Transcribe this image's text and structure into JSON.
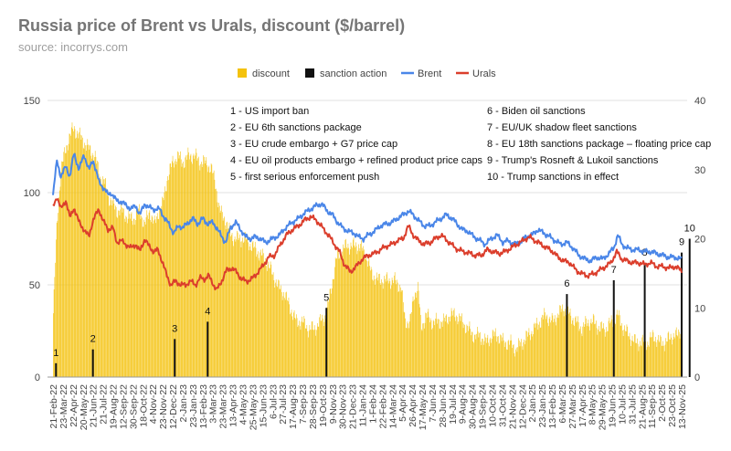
{
  "chart_data": {
    "type": "bar+line",
    "title": "Russia price of Brent vs Urals, discount ($/barrel)",
    "subtitle": "source: incorrys.com",
    "legend": [
      "discount",
      "sanction action",
      "Brent",
      "Urals"
    ],
    "legend_position": "top",
    "left_axis": {
      "ylim": [
        0,
        150
      ],
      "ticks": [
        0,
        50,
        100,
        150
      ]
    },
    "right_axis": {
      "ylim": [
        0,
        40
      ],
      "ticks": [
        0,
        10,
        20,
        30,
        40
      ]
    },
    "colors": {
      "discount": "#f4c20d",
      "sanction": "#111111",
      "brent": "#4a86e8",
      "urals": "#db3e2c",
      "grid": "#e0e0e0"
    },
    "x_tick_labels": [
      "21-Feb-22",
      "23-Mar-22",
      "22-Apr-22",
      "20-May-22",
      "21-Jun-22",
      "21-Jul-22",
      "19-Aug-22",
      "12-Sep-22",
      "30-Sep-22",
      "18-Oct-22",
      "4-Nov-22",
      "23-Nov-22",
      "12-Dec-22",
      "2-Jan-23",
      "23-Jan-23",
      "13-Feb-23",
      "3-Mar-23",
      "23-Mar-23",
      "13-Apr-23",
      "4-May-23",
      "25-May-23",
      "15-Jun-23",
      "6-Jul-23",
      "27-Jul-23",
      "17-Aug-23",
      "7-Sep-23",
      "28-Sep-23",
      "19-Oct-23",
      "9-Nov-23",
      "30-Nov-23",
      "21-Dec-23",
      "11-Jan-24",
      "1-Feb-24",
      "22-Feb-24",
      "14-Mar-24",
      "5-Apr-24",
      "26-Apr-24",
      "17-May-24",
      "7-Jun-24",
      "28-Jun-24",
      "19-Jul-24",
      "9-Aug-24",
      "30-Aug-24",
      "19-Sep-24",
      "10-Oct-24",
      "31-Oct-24",
      "21-Nov-24",
      "12-Dec-24",
      "2-Jan-25",
      "23-Jan-25",
      "13-Feb-25",
      "6-Mar-25",
      "27-Mar-25",
      "17-Apr-25",
      "8-May-25",
      "29-May-25",
      "19-Jun-25",
      "10-Jul-25",
      "31-Jul-25",
      "21-Aug-25",
      "11-Sep-25",
      "2-Oct-25",
      "23-Oct-25",
      "13-Nov-25"
    ],
    "brent_knots": [
      [
        0,
        98
      ],
      [
        0.4,
        118
      ],
      [
        0.8,
        108
      ],
      [
        1.3,
        115
      ],
      [
        1.7,
        108
      ],
      [
        2.1,
        122
      ],
      [
        2.6,
        112
      ],
      [
        3.1,
        121
      ],
      [
        3.6,
        112
      ],
      [
        4.0,
        118
      ],
      [
        4.6,
        106
      ],
      [
        5.0,
        103
      ],
      [
        5.5,
        99
      ],
      [
        5.8,
        100
      ],
      [
        6.3,
        96
      ],
      [
        6.8,
        95
      ],
      [
        7.4,
        93
      ],
      [
        7.8,
        91
      ],
      [
        8.3,
        93
      ],
      [
        8.7,
        88
      ],
      [
        9.2,
        94
      ],
      [
        9.6,
        92
      ],
      [
        10.1,
        91
      ],
      [
        10.7,
        91
      ],
      [
        11.2,
        86
      ],
      [
        11.6,
        83
      ],
      [
        12.1,
        78
      ],
      [
        12.6,
        82
      ],
      [
        13.0,
        81
      ],
      [
        13.6,
        84
      ],
      [
        14.0,
        86
      ],
      [
        14.5,
        83
      ],
      [
        15.0,
        86
      ],
      [
        15.5,
        83
      ],
      [
        16.0,
        84
      ],
      [
        16.4,
        81
      ],
      [
        16.8,
        77
      ],
      [
        17.3,
        73
      ],
      [
        17.8,
        81
      ],
      [
        18.3,
        84
      ],
      [
        18.8,
        80
      ],
      [
        19.3,
        76
      ],
      [
        19.8,
        75
      ],
      [
        20.3,
        76
      ],
      [
        20.8,
        75
      ],
      [
        21.3,
        73
      ],
      [
        22.0,
        75
      ],
      [
        22.7,
        77
      ],
      [
        23.3,
        81
      ],
      [
        24.0,
        84
      ],
      [
        24.6,
        86
      ],
      [
        25.2,
        89
      ],
      [
        25.8,
        91
      ],
      [
        26.4,
        93
      ],
      [
        26.9,
        94
      ],
      [
        27.5,
        90
      ],
      [
        28.0,
        88
      ],
      [
        28.5,
        84
      ],
      [
        29.0,
        81
      ],
      [
        29.6,
        79
      ],
      [
        30.2,
        78
      ],
      [
        30.6,
        76
      ],
      [
        31.1,
        75
      ],
      [
        31.6,
        77
      ],
      [
        32.2,
        79
      ],
      [
        32.8,
        82
      ],
      [
        33.4,
        83
      ],
      [
        34.0,
        84
      ],
      [
        34.5,
        86
      ],
      [
        35.1,
        88
      ],
      [
        35.6,
        90
      ],
      [
        36.1,
        88
      ],
      [
        36.6,
        85
      ],
      [
        37.2,
        82
      ],
      [
        37.8,
        82
      ],
      [
        38.3,
        84
      ],
      [
        38.9,
        86
      ],
      [
        39.4,
        88
      ],
      [
        40.0,
        86
      ],
      [
        40.5,
        83
      ],
      [
        41.0,
        80
      ],
      [
        41.6,
        79
      ],
      [
        42.2,
        76
      ],
      [
        42.8,
        74
      ],
      [
        43.3,
        72
      ],
      [
        43.9,
        75
      ],
      [
        44.5,
        77
      ],
      [
        45.1,
        73
      ],
      [
        45.6,
        74
      ],
      [
        46.2,
        72
      ],
      [
        46.8,
        73
      ],
      [
        47.4,
        76
      ],
      [
        48.0,
        77
      ],
      [
        48.6,
        80
      ],
      [
        49.2,
        78
      ],
      [
        49.8,
        76
      ],
      [
        50.3,
        74
      ],
      [
        50.9,
        72
      ],
      [
        51.5,
        73
      ],
      [
        52.1,
        70
      ],
      [
        52.7,
        66
      ],
      [
        53.3,
        64
      ],
      [
        53.9,
        63
      ],
      [
        54.5,
        65
      ],
      [
        55.1,
        64
      ],
      [
        55.7,
        67
      ],
      [
        56.2,
        70
      ],
      [
        56.6,
        77
      ],
      [
        57.0,
        72
      ],
      [
        57.5,
        70
      ],
      [
        58.1,
        69
      ],
      [
        58.7,
        69
      ],
      [
        59.3,
        68
      ],
      [
        59.9,
        68
      ],
      [
        60.5,
        67
      ],
      [
        61.1,
        66
      ],
      [
        61.7,
        65
      ],
      [
        62.3,
        65
      ],
      [
        62.9,
        64
      ],
      [
        63.5,
        64
      ],
      [
        64.0,
        63
      ]
    ],
    "urals_knots": [
      [
        0,
        92
      ],
      [
        0.4,
        98
      ],
      [
        0.8,
        91
      ],
      [
        1.3,
        96
      ],
      [
        1.7,
        86
      ],
      [
        2.1,
        92
      ],
      [
        2.6,
        84
      ],
      [
        3.1,
        80
      ],
      [
        3.6,
        76
      ],
      [
        4.0,
        85
      ],
      [
        4.6,
        91
      ],
      [
        5.0,
        85
      ],
      [
        5.5,
        80
      ],
      [
        6.0,
        81
      ],
      [
        6.4,
        73
      ],
      [
        6.8,
        74
      ],
      [
        7.3,
        72
      ],
      [
        7.8,
        70
      ],
      [
        8.3,
        72
      ],
      [
        8.7,
        68
      ],
      [
        9.2,
        75
      ],
      [
        9.6,
        71
      ],
      [
        10.1,
        68
      ],
      [
        10.5,
        69
      ],
      [
        11.0,
        62
      ],
      [
        11.4,
        55
      ],
      [
        11.8,
        50
      ],
      [
        12.3,
        52
      ],
      [
        12.8,
        50
      ],
      [
        13.3,
        50
      ],
      [
        13.8,
        52
      ],
      [
        14.3,
        50
      ],
      [
        14.8,
        54
      ],
      [
        15.2,
        53
      ],
      [
        15.6,
        55
      ],
      [
        16.0,
        51
      ],
      [
        16.4,
        47
      ],
      [
        16.9,
        52
      ],
      [
        17.4,
        58
      ],
      [
        17.9,
        59
      ],
      [
        18.4,
        57
      ],
      [
        18.9,
        53
      ],
      [
        19.4,
        52
      ],
      [
        19.9,
        53
      ],
      [
        20.4,
        56
      ],
      [
        21.0,
        60
      ],
      [
        21.6,
        65
      ],
      [
        22.2,
        66
      ],
      [
        22.8,
        72
      ],
      [
        23.4,
        77
      ],
      [
        24.0,
        80
      ],
      [
        24.6,
        82
      ],
      [
        25.2,
        85
      ],
      [
        25.8,
        87
      ],
      [
        26.4,
        85
      ],
      [
        27.0,
        81
      ],
      [
        27.6,
        77
      ],
      [
        28.2,
        72
      ],
      [
        28.7,
        68
      ],
      [
        29.2,
        61
      ],
      [
        29.8,
        57
      ],
      [
        30.4,
        60
      ],
      [
        31.0,
        64
      ],
      [
        31.6,
        66
      ],
      [
        32.2,
        67
      ],
      [
        32.8,
        69
      ],
      [
        33.4,
        71
      ],
      [
        34.0,
        72
      ],
      [
        34.5,
        74
      ],
      [
        35.1,
        75
      ],
      [
        35.6,
        82
      ],
      [
        36.1,
        77
      ],
      [
        36.6,
        74
      ],
      [
        37.2,
        72
      ],
      [
        37.8,
        73
      ],
      [
        38.3,
        75
      ],
      [
        38.9,
        77
      ],
      [
        39.5,
        74
      ],
      [
        40.1,
        71
      ],
      [
        40.6,
        69
      ],
      [
        41.2,
        68
      ],
      [
        41.8,
        67
      ],
      [
        42.3,
        66
      ],
      [
        42.9,
        66
      ],
      [
        43.5,
        69
      ],
      [
        44.1,
        68
      ],
      [
        44.7,
        67
      ],
      [
        45.3,
        68
      ],
      [
        45.9,
        70
      ],
      [
        46.5,
        72
      ],
      [
        47.1,
        74
      ],
      [
        47.7,
        76
      ],
      [
        48.3,
        74
      ],
      [
        48.9,
        72
      ],
      [
        49.5,
        70
      ],
      [
        50.1,
        68
      ],
      [
        50.6,
        65
      ],
      [
        51.2,
        63
      ],
      [
        51.8,
        62
      ],
      [
        52.4,
        58
      ],
      [
        53.0,
        56
      ],
      [
        53.6,
        55
      ],
      [
        54.2,
        56
      ],
      [
        54.8,
        58
      ],
      [
        55.4,
        60
      ],
      [
        55.9,
        62
      ],
      [
        56.5,
        68
      ],
      [
        57.0,
        64
      ],
      [
        57.5,
        63
      ],
      [
        58.1,
        62
      ],
      [
        58.7,
        62
      ],
      [
        59.3,
        61
      ],
      [
        59.9,
        62
      ],
      [
        60.5,
        60
      ],
      [
        61.1,
        60
      ],
      [
        61.7,
        59
      ],
      [
        62.3,
        60
      ],
      [
        62.9,
        58
      ],
      [
        63.5,
        55
      ],
      [
        64.0,
        53
      ]
    ],
    "discount_knots": [
      [
        0,
        8
      ],
      [
        0.4,
        22
      ],
      [
        0.8,
        30
      ],
      [
        1.3,
        33
      ],
      [
        1.7,
        35
      ],
      [
        2.1,
        36
      ],
      [
        2.6,
        35
      ],
      [
        3.1,
        34
      ],
      [
        3.6,
        33
      ],
      [
        4.2,
        32
      ],
      [
        4.7,
        29
      ],
      [
        5.2,
        28
      ],
      [
        5.6,
        26
      ],
      [
        6.0,
        25
      ],
      [
        6.5,
        24
      ],
      [
        7.0,
        24
      ],
      [
        7.5,
        23
      ],
      [
        8.2,
        23
      ],
      [
        8.7,
        24
      ],
      [
        9.2,
        22
      ],
      [
        9.7,
        24
      ],
      [
        10.2,
        22
      ],
      [
        10.6,
        24
      ],
      [
        11.0,
        25
      ],
      [
        11.5,
        29
      ],
      [
        12.0,
        31
      ],
      [
        12.5,
        32
      ],
      [
        13.0,
        31
      ],
      [
        13.6,
        32
      ],
      [
        14.2,
        32
      ],
      [
        14.8,
        31
      ],
      [
        15.4,
        31
      ],
      [
        15.9,
        30
      ],
      [
        16.3,
        28
      ],
      [
        16.7,
        24
      ],
      [
        17.2,
        23
      ],
      [
        17.7,
        21
      ],
      [
        18.2,
        20
      ],
      [
        18.7,
        20
      ],
      [
        19.3,
        20
      ],
      [
        19.9,
        19
      ],
      [
        20.6,
        18
      ],
      [
        21.3,
        17
      ],
      [
        22.0,
        15
      ],
      [
        22.6,
        13
      ],
      [
        23.2,
        12
      ],
      [
        23.8,
        10
      ],
      [
        24.4,
        8
      ],
      [
        25.0,
        8
      ],
      [
        25.6,
        7
      ],
      [
        26.2,
        7
      ],
      [
        26.8,
        8
      ],
      [
        27.4,
        9
      ],
      [
        27.9,
        13
      ],
      [
        28.4,
        17
      ],
      [
        28.8,
        18
      ],
      [
        29.4,
        19
      ],
      [
        30.0,
        19
      ],
      [
        30.6,
        19
      ],
      [
        31.3,
        18
      ],
      [
        31.9,
        15
      ],
      [
        32.6,
        14
      ],
      [
        33.4,
        14
      ],
      [
        34.2,
        14
      ],
      [
        34.9,
        13
      ],
      [
        35.3,
        8
      ],
      [
        35.8,
        8
      ],
      [
        36.2,
        12
      ],
      [
        36.6,
        13
      ],
      [
        36.9,
        7
      ],
      [
        37.4,
        9
      ],
      [
        38.0,
        8
      ],
      [
        38.6,
        8
      ],
      [
        39.2,
        8
      ],
      [
        39.8,
        9
      ],
      [
        40.4,
        9
      ],
      [
        41.0,
        8
      ],
      [
        41.6,
        7
      ],
      [
        42.2,
        6
      ],
      [
        42.8,
        6
      ],
      [
        43.4,
        5
      ],
      [
        44.0,
        6
      ],
      [
        44.6,
        6
      ],
      [
        45.2,
        5
      ],
      [
        45.8,
        5
      ],
      [
        46.4,
        4
      ],
      [
        47.0,
        5
      ],
      [
        47.6,
        6
      ],
      [
        48.2,
        7
      ],
      [
        48.8,
        8
      ],
      [
        49.4,
        9
      ],
      [
        50.0,
        8
      ],
      [
        50.6,
        9
      ],
      [
        51.2,
        10
      ],
      [
        51.8,
        9
      ],
      [
        52.4,
        8
      ],
      [
        53.0,
        7
      ],
      [
        53.6,
        8
      ],
      [
        54.2,
        8
      ],
      [
        54.8,
        7
      ],
      [
        55.4,
        7
      ],
      [
        56.0,
        8
      ],
      [
        56.6,
        9
      ],
      [
        57.2,
        7
      ],
      [
        57.8,
        6
      ],
      [
        58.4,
        5
      ],
      [
        59.0,
        5
      ],
      [
        59.6,
        5
      ],
      [
        60.2,
        6
      ],
      [
        60.8,
        5
      ],
      [
        61.4,
        5
      ],
      [
        62.0,
        6
      ],
      [
        62.6,
        6
      ],
      [
        63.2,
        8
      ],
      [
        64.0,
        10
      ]
    ],
    "sanction_actions": [
      {
        "id": "1",
        "x": 0.3,
        "value": 2
      },
      {
        "id": "2",
        "x": 4.0,
        "value": 4
      },
      {
        "id": "3",
        "x": 12.2,
        "value": 5.5
      },
      {
        "id": "4",
        "x": 15.5,
        "value": 8
      },
      {
        "id": "5",
        "x": 27.4,
        "value": 10
      },
      {
        "id": "6",
        "x": 51.5,
        "value": 12
      },
      {
        "id": "7",
        "x": 56.2,
        "value": 14
      },
      {
        "id": "8",
        "x": 59.3,
        "value": 16.5
      },
      {
        "id": "9",
        "x": 63.0,
        "value": 18
      },
      {
        "id": "10",
        "x": 63.8,
        "value": 20
      }
    ],
    "annotations_left": [
      "1 - US import ban",
      "2 - EU 6th sanctions package",
      "3 - EU crude embargo + G7 price cap",
      "4 - EU oil products embargo + refined product price caps",
      "5 - first serious enforcement push"
    ],
    "annotations_right": [
      "6 - Biden oil sanctions",
      "7 - EU/UK shadow fleet sanctions",
      "8 - EU 18th sanctions package – floating price cap",
      "9 - Trump's Rosneft & Lukoil sanctions",
      "10 - Trump sanctions in effect"
    ]
  }
}
